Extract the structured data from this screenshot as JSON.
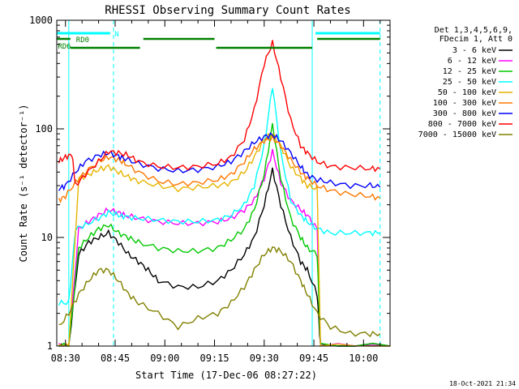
{
  "chart_data": {
    "type": "line",
    "title": "RHESSI Observing Summary Count Rates",
    "xlabel": "Start Time (17-Dec-06 08:27:22)",
    "ylabel": "Count Rate (s⁻¹ detector⁻¹)",
    "y_scale": "log",
    "ylim": [
      1,
      1000
    ],
    "y_ticks": [
      "1",
      "10",
      "100",
      "1000"
    ],
    "x_ticks": [
      "08:30",
      "08:45",
      "09:00",
      "09:15",
      "09:30",
      "09:45",
      "10:00"
    ],
    "x_tick_minutes": [
      30,
      45,
      60,
      75,
      90,
      105,
      120
    ],
    "xlim_minutes": [
      27.37,
      128
    ],
    "legend_header": [
      "Det 1,3,4,5,6,9,",
      "FDecim 1, Att 0"
    ],
    "legend_position": "right",
    "series": [
      {
        "name": "3 - 6 keV",
        "color": "#000000",
        "points": [
          [
            28,
            1
          ],
          [
            31,
            1
          ],
          [
            34,
            7
          ],
          [
            37,
            9
          ],
          [
            40,
            10
          ],
          [
            43,
            11
          ],
          [
            46,
            9
          ],
          [
            49,
            7
          ],
          [
            52,
            6
          ],
          [
            55,
            5
          ],
          [
            58,
            4
          ],
          [
            64,
            3.5
          ],
          [
            70,
            3.5
          ],
          [
            76,
            4
          ],
          [
            80,
            5
          ],
          [
            84,
            7
          ],
          [
            87,
            10
          ],
          [
            90,
            20
          ],
          [
            92.5,
            42
          ],
          [
            95,
            20
          ],
          [
            98,
            10
          ],
          [
            101,
            6
          ],
          [
            103,
            5
          ],
          [
            106,
            3
          ],
          [
            107,
            1
          ],
          [
            128,
            1
          ]
        ]
      },
      {
        "name": "6 - 12 keV",
        "color": "#ff00ff",
        "points": [
          [
            28,
            1
          ],
          [
            31,
            1
          ],
          [
            34,
            12
          ],
          [
            37,
            14
          ],
          [
            40,
            16
          ],
          [
            43,
            18
          ],
          [
            46,
            17
          ],
          [
            48,
            16
          ],
          [
            52,
            15
          ],
          [
            58,
            14
          ],
          [
            64,
            13.5
          ],
          [
            70,
            13.5
          ],
          [
            76,
            14
          ],
          [
            80,
            15
          ],
          [
            84,
            18
          ],
          [
            87,
            22
          ],
          [
            90,
            35
          ],
          [
            92.5,
            62
          ],
          [
            95,
            32
          ],
          [
            98,
            22
          ],
          [
            101,
            18
          ],
          [
            103,
            16
          ],
          [
            106,
            12
          ],
          [
            107,
            1
          ],
          [
            128,
            1
          ]
        ]
      },
      {
        "name": "12 - 25 keV",
        "color": "#00c800",
        "points": [
          [
            28,
            1
          ],
          [
            31,
            1
          ],
          [
            34,
            8
          ],
          [
            37,
            10
          ],
          [
            40,
            12
          ],
          [
            43,
            13
          ],
          [
            46,
            11
          ],
          [
            49,
            10
          ],
          [
            52,
            9
          ],
          [
            58,
            8
          ],
          [
            64,
            7.5
          ],
          [
            70,
            7.5
          ],
          [
            76,
            8
          ],
          [
            80,
            9.5
          ],
          [
            84,
            12
          ],
          [
            87,
            18
          ],
          [
            90,
            38
          ],
          [
            92.5,
            110
          ],
          [
            95,
            35
          ],
          [
            98,
            15
          ],
          [
            101,
            10
          ],
          [
            103,
            8
          ],
          [
            106,
            7
          ],
          [
            107,
            1
          ],
          [
            128,
            1
          ]
        ]
      },
      {
        "name": "25 - 50 keV",
        "color": "#00ffff",
        "points": [
          [
            28,
            2.5
          ],
          [
            31,
            2.5
          ],
          [
            33,
            12
          ],
          [
            36,
            13
          ],
          [
            40,
            15
          ],
          [
            43,
            17
          ],
          [
            46,
            16
          ],
          [
            48,
            15.5
          ],
          [
            52,
            15
          ],
          [
            58,
            14.5
          ],
          [
            64,
            14
          ],
          [
            70,
            14
          ],
          [
            76,
            14.5
          ],
          [
            80,
            16
          ],
          [
            84,
            20
          ],
          [
            87,
            30
          ],
          [
            90,
            70
          ],
          [
            92.5,
            250
          ],
          [
            95,
            60
          ],
          [
            98,
            22
          ],
          [
            101,
            16
          ],
          [
            103,
            14
          ],
          [
            106,
            12
          ],
          [
            110,
            11
          ],
          [
            116,
            11
          ],
          [
            122,
            11
          ],
          [
            125,
            11
          ]
        ]
      },
      {
        "name": "50 - 100 keV",
        "color": "#e6b400",
        "points": [
          [
            28,
            1
          ],
          [
            31,
            1
          ],
          [
            34,
            35
          ],
          [
            37,
            38
          ],
          [
            40,
            42
          ],
          [
            43,
            45
          ],
          [
            46,
            40
          ],
          [
            49,
            36
          ],
          [
            52,
            33
          ],
          [
            58,
            30
          ],
          [
            64,
            28
          ],
          [
            70,
            29
          ],
          [
            76,
            30
          ],
          [
            80,
            32
          ],
          [
            84,
            40
          ],
          [
            87,
            55
          ],
          [
            90,
            80
          ],
          [
            92.5,
            90
          ],
          [
            95,
            70
          ],
          [
            98,
            45
          ],
          [
            101,
            35
          ],
          [
            103,
            30
          ],
          [
            106,
            28
          ],
          [
            107,
            1
          ],
          [
            128,
            1
          ]
        ]
      },
      {
        "name": "100 - 300 keV",
        "color": "#ff7800",
        "points": [
          [
            28,
            22
          ],
          [
            30,
            24
          ],
          [
            33,
            32
          ],
          [
            36,
            40
          ],
          [
            40,
            50
          ],
          [
            43,
            55
          ],
          [
            46,
            52
          ],
          [
            48,
            48
          ],
          [
            52,
            40
          ],
          [
            58,
            33
          ],
          [
            64,
            31
          ],
          [
            70,
            32
          ],
          [
            76,
            34
          ],
          [
            80,
            38
          ],
          [
            84,
            50
          ],
          [
            87,
            65
          ],
          [
            90,
            78
          ],
          [
            92.5,
            82
          ],
          [
            95,
            70
          ],
          [
            98,
            52
          ],
          [
            101,
            40
          ],
          [
            103,
            35
          ],
          [
            106,
            30
          ],
          [
            110,
            27
          ],
          [
            116,
            25
          ],
          [
            122,
            24
          ],
          [
            125,
            23
          ]
        ]
      },
      {
        "name": "300 - 800 keV",
        "color": "#0000ff",
        "points": [
          [
            28,
            28
          ],
          [
            30,
            30
          ],
          [
            33,
            40
          ],
          [
            36,
            50
          ],
          [
            40,
            57
          ],
          [
            43,
            60
          ],
          [
            46,
            56
          ],
          [
            48,
            53
          ],
          [
            52,
            48
          ],
          [
            58,
            43
          ],
          [
            64,
            41
          ],
          [
            70,
            42
          ],
          [
            76,
            45
          ],
          [
            80,
            50
          ],
          [
            84,
            62
          ],
          [
            87,
            75
          ],
          [
            90,
            85
          ],
          [
            92.5,
            88
          ],
          [
            95,
            78
          ],
          [
            98,
            60
          ],
          [
            101,
            45
          ],
          [
            103,
            38
          ],
          [
            106,
            34
          ],
          [
            110,
            32
          ],
          [
            116,
            30
          ],
          [
            122,
            30
          ],
          [
            125,
            29
          ]
        ]
      },
      {
        "name": "800 - 7000 keV",
        "color": "#ff0000",
        "points": [
          [
            28,
            50
          ],
          [
            30,
            55
          ],
          [
            32,
            58
          ],
          [
            33,
            30
          ],
          [
            36,
            38
          ],
          [
            40,
            50
          ],
          [
            43,
            62
          ],
          [
            46,
            60
          ],
          [
            49,
            57
          ],
          [
            52,
            50
          ],
          [
            58,
            45
          ],
          [
            64,
            44
          ],
          [
            70,
            45
          ],
          [
            76,
            48
          ],
          [
            80,
            55
          ],
          [
            84,
            80
          ],
          [
            87,
            150
          ],
          [
            90,
            400
          ],
          [
            92.5,
            620
          ],
          [
            95,
            300
          ],
          [
            98,
            120
          ],
          [
            101,
            70
          ],
          [
            103,
            60
          ],
          [
            106,
            50
          ],
          [
            110,
            45
          ],
          [
            116,
            44
          ],
          [
            122,
            43
          ],
          [
            125,
            43
          ]
        ]
      },
      {
        "name": "7000 - 15000 keV",
        "color": "#808000",
        "points": [
          [
            28,
            1.5
          ],
          [
            31,
            2
          ],
          [
            34,
            3
          ],
          [
            37,
            4
          ],
          [
            40,
            5
          ],
          [
            43,
            5
          ],
          [
            46,
            4
          ],
          [
            49,
            3
          ],
          [
            52,
            2.5
          ],
          [
            58,
            2
          ],
          [
            64,
            1.5
          ],
          [
            70,
            1.8
          ],
          [
            76,
            2
          ],
          [
            80,
            2.5
          ],
          [
            84,
            3.5
          ],
          [
            87,
            5
          ],
          [
            90,
            7
          ],
          [
            92.5,
            8
          ],
          [
            95,
            7.5
          ],
          [
            98,
            6
          ],
          [
            101,
            4
          ],
          [
            103,
            3
          ],
          [
            106,
            2
          ],
          [
            110,
            1.5
          ],
          [
            116,
            1.3
          ],
          [
            122,
            1.3
          ],
          [
            125,
            1.3
          ]
        ]
      }
    ],
    "attenuator_state_spans": [
      {
        "label": "N",
        "color": "#00ffff",
        "segments": [
          [
            27.37,
            43.5
          ],
          [
            105.5,
            125
          ]
        ]
      }
    ],
    "rate_decimation_spans": [
      {
        "label": "RD0",
        "color": "#008000",
        "segments": [
          [
            27.37,
            31.5
          ],
          [
            53.5,
            75
          ],
          [
            106,
            125
          ]
        ]
      },
      {
        "label": "RD6",
        "color": "#008000",
        "segments": [
          [
            31.5,
            52.5
          ],
          [
            75.5,
            104.5
          ]
        ]
      }
    ],
    "spacecraft_marker_minutes": [
      31,
      44.5,
      104.5,
      125
    ],
    "spacecraft_marker_styles": [
      "solid",
      "dashed",
      "solid",
      "dashed"
    ],
    "timestamp": "18-Oct-2021 21:34"
  }
}
